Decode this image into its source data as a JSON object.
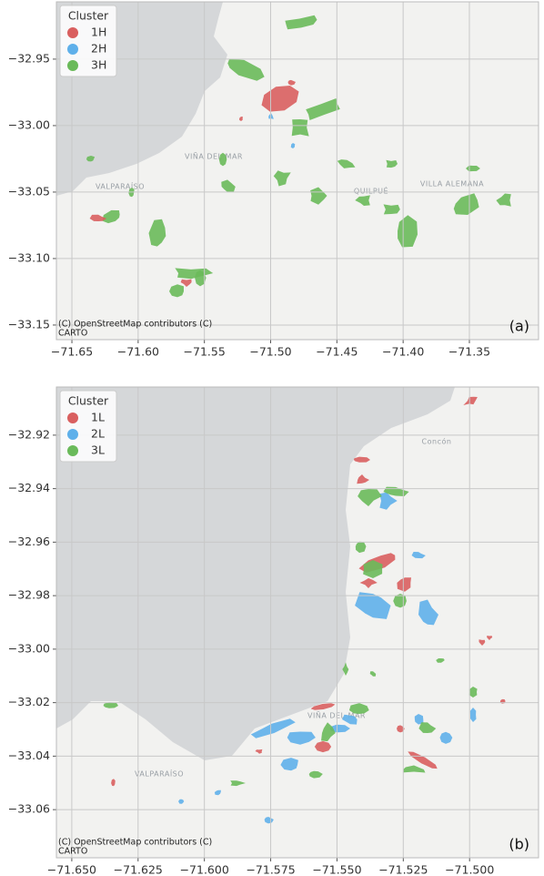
{
  "chart_data": [
    {
      "type": "map",
      "legend_title": "Cluster",
      "legend": [
        {
          "label": "1H",
          "color": "#d95f5f"
        },
        {
          "label": "2H",
          "color": "#5fb0ea"
        },
        {
          "label": "3H",
          "color": "#6aba5a"
        }
      ],
      "xlim": [
        -71.6617,
        -71.2978
      ],
      "ylim": [
        -33.161,
        -32.9069
      ],
      "xticks": [
        {
          "value": -71.65,
          "label": "−71.65"
        },
        {
          "value": -71.6,
          "label": "−71.60"
        },
        {
          "value": -71.55,
          "label": "−71.55"
        },
        {
          "value": -71.5,
          "label": "−71.50"
        },
        {
          "value": -71.45,
          "label": "−71.45"
        },
        {
          "value": -71.4,
          "label": "−71.40"
        },
        {
          "value": -71.35,
          "label": "−71.35"
        }
      ],
      "yticks": [
        {
          "value": -32.95,
          "label": "−32.95"
        },
        {
          "value": -33.0,
          "label": "−33.00"
        },
        {
          "value": -33.05,
          "label": "−33.05"
        },
        {
          "value": -33.1,
          "label": "−33.10"
        },
        {
          "value": -33.15,
          "label": "−33.15"
        }
      ],
      "grid": true,
      "places": [
        "VALPARAÍSO",
        "VIÑA DEL MAR",
        "QUILPUÉ",
        "VILLA ALEMANA"
      ],
      "attribution": [
        "(C) OpenStreetMap contributors (C)",
        "CARTO"
      ],
      "panel_label": "(a)"
    },
    {
      "type": "map",
      "legend_title": "Cluster",
      "legend": [
        {
          "label": "1L",
          "color": "#d95f5f"
        },
        {
          "label": "2L",
          "color": "#5fb0ea"
        },
        {
          "label": "3L",
          "color": "#6aba5a"
        }
      ],
      "xlim": [
        -71.6558,
        -71.474
      ],
      "ylim": [
        -33.078,
        -32.902
      ],
      "xticks": [
        {
          "value": -71.65,
          "label": "−71.650"
        },
        {
          "value": -71.625,
          "label": "−71.625"
        },
        {
          "value": -71.6,
          "label": "−71.600"
        },
        {
          "value": -71.575,
          "label": "−71.575"
        },
        {
          "value": -71.55,
          "label": "−71.550"
        },
        {
          "value": -71.525,
          "label": "−71.525"
        },
        {
          "value": -71.5,
          "label": "−71.500"
        }
      ],
      "yticks": [
        {
          "value": -32.92,
          "label": "−32.92"
        },
        {
          "value": -32.94,
          "label": "−32.94"
        },
        {
          "value": -32.96,
          "label": "−32.96"
        },
        {
          "value": -32.98,
          "label": "−32.98"
        },
        {
          "value": -33.0,
          "label": "−33.00"
        },
        {
          "value": -33.02,
          "label": "−33.02"
        },
        {
          "value": -33.04,
          "label": "−33.04"
        },
        {
          "value": -33.06,
          "label": "−33.06"
        }
      ],
      "grid": true,
      "places": [
        "VALPARAÍSO",
        "VIÑA DEL MAR",
        "Concón"
      ],
      "attribution": [
        "(C) OpenStreetMap contributors (C)",
        "CARTO"
      ],
      "panel_label": "(b)"
    }
  ]
}
